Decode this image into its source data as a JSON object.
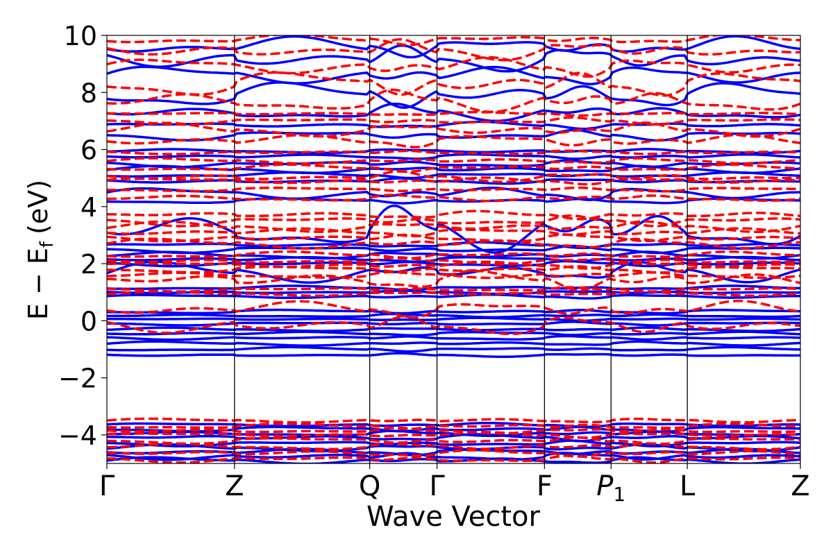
{
  "chart_data": {
    "type": "line",
    "title": "",
    "xlabel": "Wave Vector",
    "ylabel": "E − E",
    "ylabel_sub": "f",
    "ylabel_unit": "(eV)",
    "ylim": [
      -5,
      10
    ],
    "yticks": [
      -4,
      -2,
      0,
      2,
      4,
      6,
      8,
      10
    ],
    "ytick_labels": [
      "−4",
      "−2",
      "0",
      "2",
      "4",
      "6",
      "8",
      "10"
    ],
    "kpoints": [
      {
        "label": "Γ",
        "sub": "",
        "x": 0.0
      },
      {
        "label": "Z",
        "sub": "",
        "x": 0.184
      },
      {
        "label": "Q",
        "sub": "",
        "x": 0.379
      },
      {
        "label": "Γ",
        "sub": "",
        "x": 0.476
      },
      {
        "label": "F",
        "sub": "",
        "x": 0.631
      },
      {
        "label": "P",
        "sub": "1",
        "x": 0.727
      },
      {
        "label": "L",
        "sub": "",
        "x": 0.837
      },
      {
        "label": "Z",
        "sub": "",
        "x": 1.0
      }
    ],
    "xlim": [
      0,
      1
    ],
    "grid": false,
    "legend": "none",
    "series": [
      {
        "style": "solid",
        "color": "#0000ff",
        "bands": [
          {
            "base": -4.9,
            "amp": 0.1
          },
          {
            "base": -4.75,
            "amp": 0.12
          },
          {
            "base": -4.6,
            "amp": 0.1
          },
          {
            "base": -4.45,
            "amp": 0.1
          },
          {
            "base": -4.3,
            "amp": 0.08
          },
          {
            "base": -4.1,
            "amp": 0.1
          },
          {
            "base": -3.95,
            "amp": 0.08
          },
          {
            "base": -3.8,
            "amp": 0.08
          },
          {
            "base": -3.65,
            "amp": 0.06
          },
          {
            "base": -1.2,
            "amp": 0.05
          },
          {
            "base": -1.0,
            "amp": 0.06
          },
          {
            "base": -0.8,
            "amp": 0.06
          },
          {
            "base": -0.6,
            "amp": 0.06
          },
          {
            "base": -0.45,
            "amp": 0.06
          },
          {
            "base": -0.3,
            "amp": 0.05
          },
          {
            "base": -0.1,
            "amp": 0.05
          },
          {
            "base": 0.05,
            "amp": 0.04
          },
          {
            "base": 0.18,
            "amp": 0.05
          },
          {
            "base": 0.32,
            "amp": 0.06
          },
          {
            "base": 0.85,
            "amp": 0.06
          },
          {
            "base": 1.0,
            "amp": 0.05
          },
          {
            "base": 1.15,
            "amp": 0.06
          },
          {
            "base": 1.7,
            "amp": 0.3
          },
          {
            "base": 2.0,
            "amp": 0.08
          },
          {
            "base": 2.15,
            "amp": 0.08
          },
          {
            "base": 2.3,
            "amp": 0.1
          },
          {
            "base": 2.5,
            "amp": 0.1
          },
          {
            "base": 2.65,
            "amp": 0.08
          },
          {
            "base": 3.2,
            "amp": 0.7
          },
          {
            "base": 4.2,
            "amp": 0.08
          },
          {
            "base": 4.45,
            "amp": 0.2
          },
          {
            "base": 4.9,
            "amp": 0.08
          },
          {
            "base": 5.1,
            "amp": 0.08
          },
          {
            "base": 5.3,
            "amp": 0.1
          },
          {
            "base": 5.5,
            "amp": 0.1
          },
          {
            "base": 5.75,
            "amp": 0.08
          },
          {
            "base": 5.95,
            "amp": 0.06
          },
          {
            "base": 6.5,
            "amp": 0.15
          },
          {
            "base": 6.85,
            "amp": 0.1
          },
          {
            "base": 7.3,
            "amp": 0.25
          },
          {
            "base": 7.9,
            "amp": 0.4
          },
          {
            "base": 8.6,
            "amp": 0.3
          },
          {
            "base": 9.2,
            "amp": 0.4
          },
          {
            "base": 9.6,
            "amp": 0.3
          }
        ]
      },
      {
        "style": "dashed",
        "color": "#ff0000",
        "bands": [
          {
            "base": -4.85,
            "amp": 0.1
          },
          {
            "base": -4.65,
            "amp": 0.1
          },
          {
            "base": -4.4,
            "amp": 0.1
          },
          {
            "base": -4.2,
            "amp": 0.1
          },
          {
            "base": -4.0,
            "amp": 0.08
          },
          {
            "base": -3.85,
            "amp": 0.08
          },
          {
            "base": -3.7,
            "amp": 0.08
          },
          {
            "base": -3.5,
            "amp": 0.06
          },
          {
            "base": -0.15,
            "amp": 0.3
          },
          {
            "base": 0.4,
            "amp": 0.25
          },
          {
            "base": 0.95,
            "amp": 0.06
          },
          {
            "base": 1.1,
            "amp": 0.06
          },
          {
            "base": 1.4,
            "amp": 0.3
          },
          {
            "base": 1.6,
            "amp": 0.1
          },
          {
            "base": 1.8,
            "amp": 0.1
          },
          {
            "base": 1.95,
            "amp": 0.1
          },
          {
            "base": 2.1,
            "amp": 0.1
          },
          {
            "base": 2.3,
            "amp": 0.1
          },
          {
            "base": 2.7,
            "amp": 0.15
          },
          {
            "base": 2.9,
            "amp": 0.12
          },
          {
            "base": 3.1,
            "amp": 0.12
          },
          {
            "base": 3.3,
            "amp": 0.15
          },
          {
            "base": 3.5,
            "amp": 0.15
          },
          {
            "base": 3.7,
            "amp": 0.12
          },
          {
            "base": 4.3,
            "amp": 0.1
          },
          {
            "base": 4.6,
            "amp": 0.06
          },
          {
            "base": 4.9,
            "amp": 0.1
          },
          {
            "base": 5.05,
            "amp": 0.15
          },
          {
            "base": 5.35,
            "amp": 0.1
          },
          {
            "base": 5.6,
            "amp": 0.08
          },
          {
            "base": 5.9,
            "amp": 0.06
          },
          {
            "base": 6.3,
            "amp": 0.2
          },
          {
            "base": 6.7,
            "amp": 0.2
          },
          {
            "base": 7.0,
            "amp": 0.1
          },
          {
            "base": 7.25,
            "amp": 0.05
          },
          {
            "base": 7.7,
            "amp": 0.35
          },
          {
            "base": 8.3,
            "amp": 0.4
          },
          {
            "base": 8.9,
            "amp": 0.3
          },
          {
            "base": 9.5,
            "amp": 0.3
          },
          {
            "base": 9.85,
            "amp": 0.15
          }
        ]
      }
    ]
  }
}
